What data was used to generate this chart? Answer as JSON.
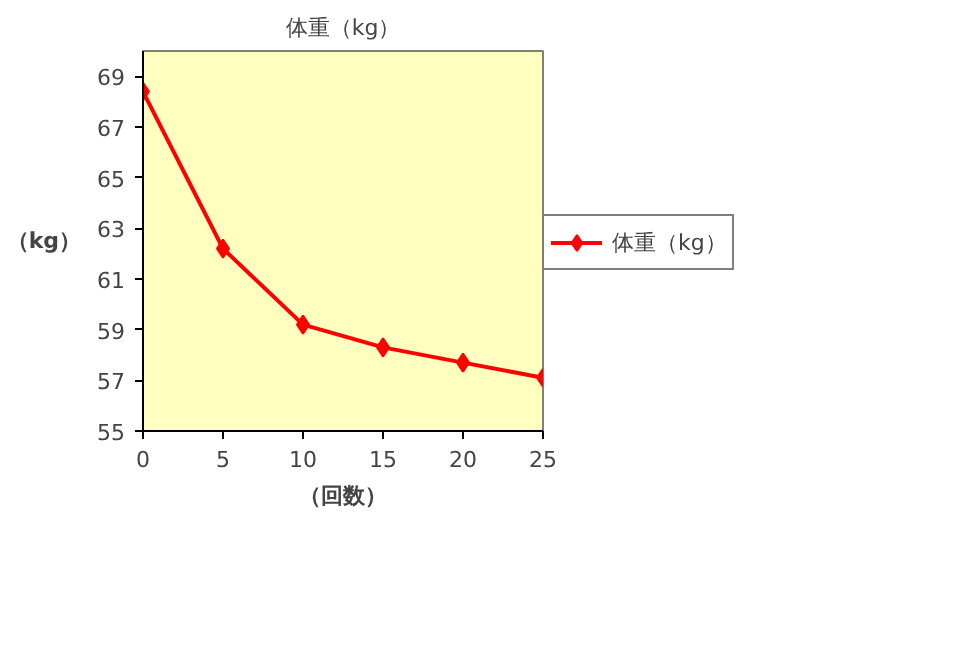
{
  "chart_data": {
    "type": "line",
    "title": "体重（kg）",
    "xlabel": "（回数）",
    "ylabel": "（kg）",
    "x": [
      0,
      5,
      10,
      15,
      20,
      25
    ],
    "series": [
      {
        "name": "体重（kg）",
        "color": "#ff0000",
        "values": [
          68.4,
          62.2,
          59.2,
          58.3,
          57.7,
          57.1
        ]
      }
    ],
    "xlim": [
      0,
      25
    ],
    "xticks": [
      0,
      5,
      10,
      15,
      20,
      25
    ],
    "ylim": [
      55,
      70
    ],
    "yticks": [
      55,
      57,
      59,
      61,
      63,
      65,
      67,
      69
    ],
    "grid": false,
    "legend": "right",
    "marker": "diamond",
    "line_style": "solid"
  }
}
